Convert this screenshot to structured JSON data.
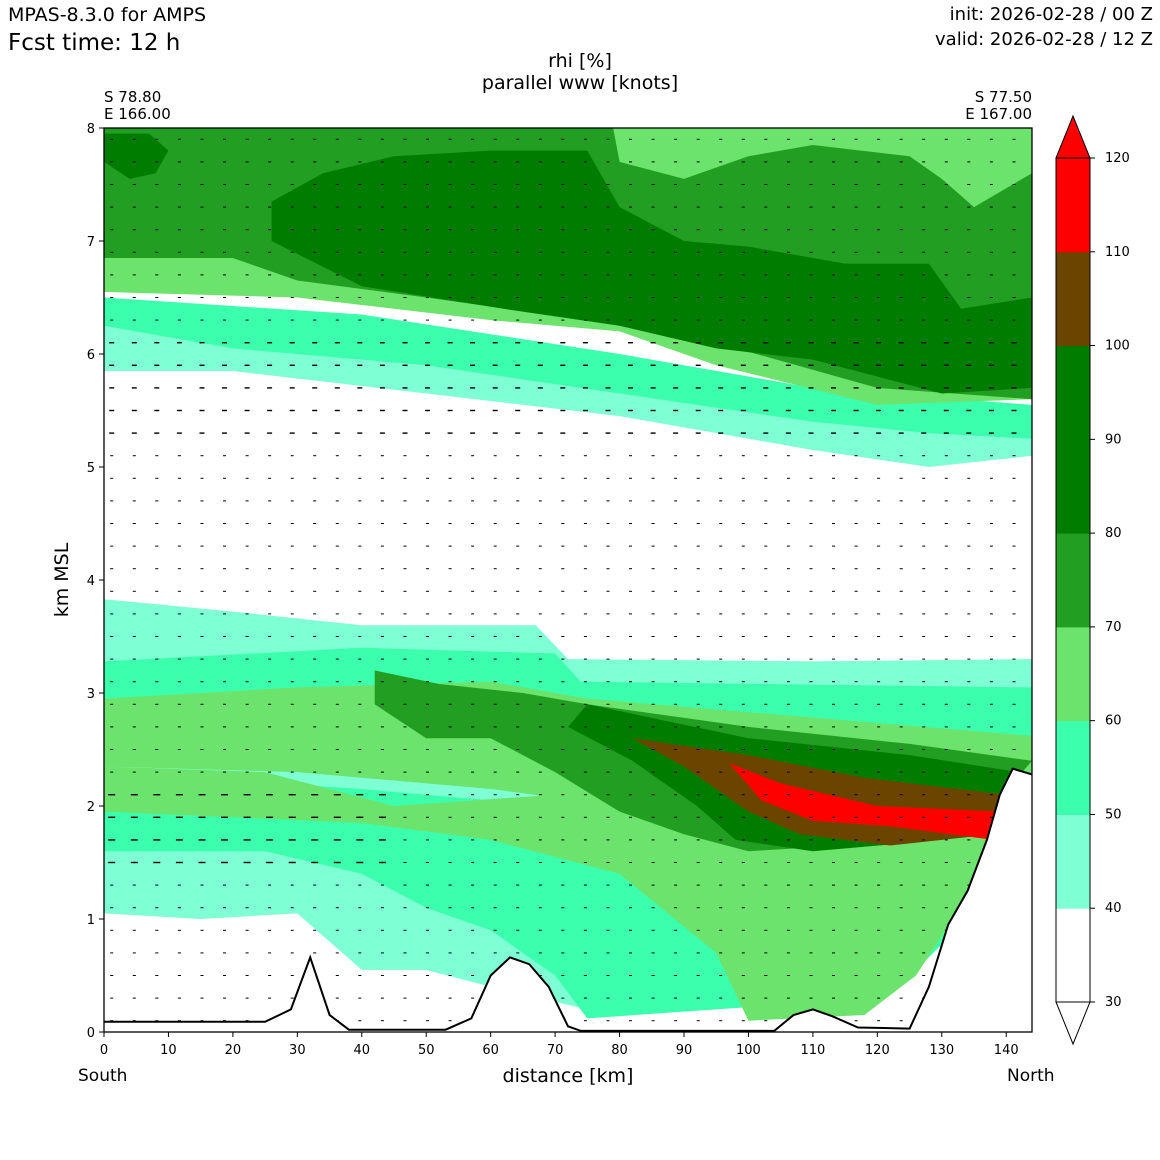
{
  "header": {
    "model": "MPAS-8.3.0 for AMPS",
    "fcst_time": "Fcst time:   12 h",
    "init": "init: 2026-02-28 / 00 Z",
    "valid": "valid: 2026-02-28 / 12 Z"
  },
  "endpoints": {
    "left_lat": "S 78.80",
    "left_lon": "E 166.00",
    "right_lat": "S 77.50",
    "right_lon": "E 167.00",
    "left_dir": "South",
    "right_dir": "North"
  },
  "chart_data": {
    "type": "filled-contour cross-section with wind vectors",
    "title": [
      "rhi [%]",
      "parallel www [knots]"
    ],
    "xlabel": "distance [km]",
    "ylabel": "km MSL",
    "xlim": [
      0,
      144
    ],
    "ylim": [
      0,
      8
    ],
    "x_ticks": [
      0,
      10,
      20,
      30,
      40,
      50,
      60,
      70,
      80,
      90,
      100,
      110,
      120,
      130,
      140
    ],
    "y_ticks": [
      0,
      1,
      2,
      3,
      4,
      5,
      6,
      7,
      8
    ],
    "colorbar": {
      "levels": [
        30,
        40,
        50,
        60,
        70,
        80,
        90,
        100,
        110,
        120
      ],
      "colors": [
        "#ffffff",
        "#7fffd4",
        "#3cffae",
        "#6ce36c",
        "#229e22",
        "#007d00",
        "#007d00",
        "#6b4400",
        "#ff0000"
      ],
      "extend": "both"
    },
    "terrain_km": [
      [
        0,
        0.09
      ],
      [
        25,
        0.09
      ],
      [
        29,
        0.2
      ],
      [
        32,
        0.66
      ],
      [
        35,
        0.15
      ],
      [
        38,
        0.02
      ],
      [
        53,
        0.02
      ],
      [
        57,
        0.12
      ],
      [
        60,
        0.5
      ],
      [
        63,
        0.66
      ],
      [
        66,
        0.6
      ],
      [
        69,
        0.4
      ],
      [
        72,
        0.05
      ],
      [
        74,
        0.01
      ],
      [
        104,
        0.01
      ],
      [
        107,
        0.15
      ],
      [
        110,
        0.2
      ],
      [
        113,
        0.14
      ],
      [
        117,
        0.04
      ],
      [
        125,
        0.03
      ],
      [
        128,
        0.4
      ],
      [
        131,
        0.95
      ],
      [
        134,
        1.25
      ],
      [
        137,
        1.7
      ],
      [
        139,
        2.1
      ],
      [
        141,
        2.33
      ],
      [
        144,
        2.28
      ]
    ],
    "regions": [
      {
        "level": 40,
        "label": "rhi 40-50 band lower",
        "poly": [
          [
            0,
            3.83
          ],
          [
            20,
            3.72
          ],
          [
            40,
            3.6
          ],
          [
            67,
            3.6
          ],
          [
            72,
            3.3
          ],
          [
            110,
            3.28
          ],
          [
            144,
            3.3
          ],
          [
            144,
            2.7
          ],
          [
            0,
            2.7
          ]
        ]
      },
      {
        "level": 50,
        "label": "rhi 50-60 band lower",
        "poly": [
          [
            0,
            3.28
          ],
          [
            40,
            3.4
          ],
          [
            70,
            3.35
          ],
          [
            74,
            3.1
          ],
          [
            144,
            3.05
          ],
          [
            144,
            2.6
          ],
          [
            0,
            2.6
          ]
        ]
      },
      {
        "level": 60,
        "label": "rhi 60-70 band lower",
        "poly": [
          [
            0,
            2.95
          ],
          [
            30,
            3.05
          ],
          [
            60,
            3.1
          ],
          [
            75,
            2.95
          ],
          [
            144,
            2.62
          ],
          [
            144,
            2.0
          ],
          [
            0,
            2.0
          ]
        ]
      },
      {
        "level": 40,
        "label": "rhi 40-50 low layer",
        "poly": [
          [
            0,
            2.35
          ],
          [
            30,
            2.3
          ],
          [
            60,
            2.15
          ],
          [
            80,
            2.0
          ],
          [
            110,
            1.7
          ],
          [
            130,
            1.45
          ],
          [
            132,
            1.3
          ],
          [
            128,
            0.85
          ],
          [
            118,
            0.55
          ],
          [
            100,
            0.35
          ],
          [
            75,
            0.2
          ],
          [
            60,
            0.4
          ],
          [
            50,
            0.55
          ],
          [
            40,
            0.55
          ],
          [
            30,
            1.05
          ],
          [
            15,
            1.0
          ],
          [
            0,
            1.05
          ]
        ]
      },
      {
        "level": 50,
        "label": "rhi 50-60 low layer",
        "poly": [
          [
            0,
            2.3
          ],
          [
            40,
            2.15
          ],
          [
            70,
            2.0
          ],
          [
            95,
            1.7
          ],
          [
            120,
            1.5
          ],
          [
            134,
            1.4
          ],
          [
            138,
            1.6
          ],
          [
            140,
            2.0
          ],
          [
            134,
            1.0
          ],
          [
            126,
            0.55
          ],
          [
            118,
            0.3
          ],
          [
            100,
            0.22
          ],
          [
            75,
            0.12
          ],
          [
            70,
            0.5
          ],
          [
            60,
            0.9
          ],
          [
            50,
            1.1
          ],
          [
            40,
            1.4
          ],
          [
            25,
            1.6
          ],
          [
            0,
            1.6
          ]
        ]
      },
      {
        "level": 60,
        "label": "rhi 60-70 low layer",
        "poly": [
          [
            0,
            2.35
          ],
          [
            25,
            2.3
          ],
          [
            45,
            2.0
          ],
          [
            70,
            2.1
          ],
          [
            90,
            2.0
          ],
          [
            110,
            1.9
          ],
          [
            130,
            1.7
          ],
          [
            142,
            2.4
          ],
          [
            140,
            1.8
          ],
          [
            134,
            1.2
          ],
          [
            126,
            0.5
          ],
          [
            118,
            0.15
          ],
          [
            100,
            0.1
          ],
          [
            95,
            0.7
          ],
          [
            80,
            1.4
          ],
          [
            70,
            1.55
          ],
          [
            60,
            1.7
          ],
          [
            40,
            1.85
          ],
          [
            0,
            1.95
          ]
        ]
      },
      {
        "level": 70,
        "label": "rhi 70-80 mid",
        "poly": [
          [
            42,
            3.2
          ],
          [
            52,
            3.08
          ],
          [
            65,
            3.0
          ],
          [
            75,
            2.9
          ],
          [
            100,
            2.7
          ],
          [
            125,
            2.55
          ],
          [
            144,
            2.4
          ],
          [
            141,
            2.2
          ],
          [
            132,
            1.95
          ],
          [
            115,
            1.65
          ],
          [
            100,
            1.6
          ],
          [
            90,
            1.75
          ],
          [
            80,
            1.95
          ],
          [
            70,
            2.3
          ],
          [
            60,
            2.6
          ],
          [
            50,
            2.6
          ],
          [
            42,
            2.9
          ]
        ]
      },
      {
        "level": 80,
        "label": "rhi 80-90 mid",
        "poly": [
          [
            75,
            2.9
          ],
          [
            100,
            2.6
          ],
          [
            125,
            2.45
          ],
          [
            142,
            2.3
          ],
          [
            140,
            2.05
          ],
          [
            130,
            1.7
          ],
          [
            110,
            1.6
          ],
          [
            98,
            1.7
          ],
          [
            92,
            2.0
          ],
          [
            82,
            2.4
          ],
          [
            72,
            2.7
          ]
        ]
      },
      {
        "level": 100,
        "label": "rhi 100-110 mid",
        "poly": [
          [
            82,
            2.6
          ],
          [
            100,
            2.45
          ],
          [
            118,
            2.25
          ],
          [
            140,
            2.1
          ],
          [
            138,
            1.75
          ],
          [
            122,
            1.65
          ],
          [
            108,
            1.75
          ],
          [
            100,
            1.95
          ],
          [
            90,
            2.35
          ]
        ]
      },
      {
        "level": 110,
        "label": "rhi 110-120 core",
        "poly": [
          [
            97,
            2.38
          ],
          [
            105,
            2.2
          ],
          [
            120,
            2.0
          ],
          [
            139,
            1.95
          ],
          [
            138,
            1.7
          ],
          [
            122,
            1.82
          ],
          [
            110,
            1.87
          ],
          [
            102,
            2.05
          ]
        ]
      },
      {
        "level": 40,
        "label": "rhi 40-50 band upper",
        "poly": [
          [
            0,
            6.5
          ],
          [
            40,
            6.3
          ],
          [
            80,
            6.0
          ],
          [
            110,
            5.7
          ],
          [
            144,
            5.5
          ],
          [
            144,
            5.1
          ],
          [
            128,
            5.0
          ],
          [
            110,
            5.15
          ],
          [
            80,
            5.45
          ],
          [
            50,
            5.65
          ],
          [
            20,
            5.85
          ],
          [
            0,
            5.85
          ]
        ]
      },
      {
        "level": 50,
        "label": "rhi 50-60 band upper",
        "poly": [
          [
            0,
            6.5
          ],
          [
            40,
            6.35
          ],
          [
            80,
            6.0
          ],
          [
            110,
            5.7
          ],
          [
            144,
            5.55
          ],
          [
            144,
            5.25
          ],
          [
            128,
            5.3
          ],
          [
            110,
            5.4
          ],
          [
            80,
            5.65
          ],
          [
            50,
            5.9
          ],
          [
            20,
            6.05
          ],
          [
            0,
            6.25
          ]
        ]
      },
      {
        "level": 60,
        "label": "rhi 60-70 upper",
        "poly": [
          [
            0,
            8
          ],
          [
            144,
            8
          ],
          [
            144,
            5.6
          ],
          [
            120,
            5.55
          ],
          [
            95,
            5.9
          ],
          [
            80,
            6.2
          ],
          [
            60,
            6.3
          ],
          [
            30,
            6.5
          ],
          [
            0,
            6.55
          ]
        ]
      },
      {
        "level": 70,
        "label": "rhi 70-80 upper",
        "poly": [
          [
            0,
            8
          ],
          [
            79,
            8
          ],
          [
            80,
            7.7
          ],
          [
            90,
            7.55
          ],
          [
            100,
            7.75
          ],
          [
            110,
            7.85
          ],
          [
            125,
            7.75
          ],
          [
            130,
            7.55
          ],
          [
            135,
            7.3
          ],
          [
            144,
            7.6
          ],
          [
            144,
            5.6
          ],
          [
            120,
            5.7
          ],
          [
            95,
            6.1
          ],
          [
            75,
            6.3
          ],
          [
            50,
            6.5
          ],
          [
            30,
            6.65
          ],
          [
            20,
            6.85
          ],
          [
            0,
            6.85
          ]
        ]
      },
      {
        "level": 80,
        "label": "rhi 80-100 upper core",
        "poly": [
          [
            26,
            7.35
          ],
          [
            34,
            7.6
          ],
          [
            45,
            7.75
          ],
          [
            60,
            7.8
          ],
          [
            75,
            7.8
          ],
          [
            80,
            7.3
          ],
          [
            90,
            7.0
          ],
          [
            100,
            6.95
          ],
          [
            115,
            6.8
          ],
          [
            128,
            6.8
          ],
          [
            133,
            6.4
          ],
          [
            144,
            6.5
          ],
          [
            144,
            5.7
          ],
          [
            130,
            5.65
          ],
          [
            110,
            5.95
          ],
          [
            95,
            6.05
          ],
          [
            80,
            6.25
          ],
          [
            62,
            6.4
          ],
          [
            40,
            6.6
          ],
          [
            26,
            7.0
          ]
        ]
      },
      {
        "level": 80,
        "label": "rhi 80-90 corner",
        "poly": [
          [
            0,
            7.7
          ],
          [
            4,
            7.55
          ],
          [
            8,
            7.6
          ],
          [
            10,
            7.8
          ],
          [
            7,
            7.95
          ],
          [
            0,
            7.95
          ]
        ]
      }
    ]
  }
}
